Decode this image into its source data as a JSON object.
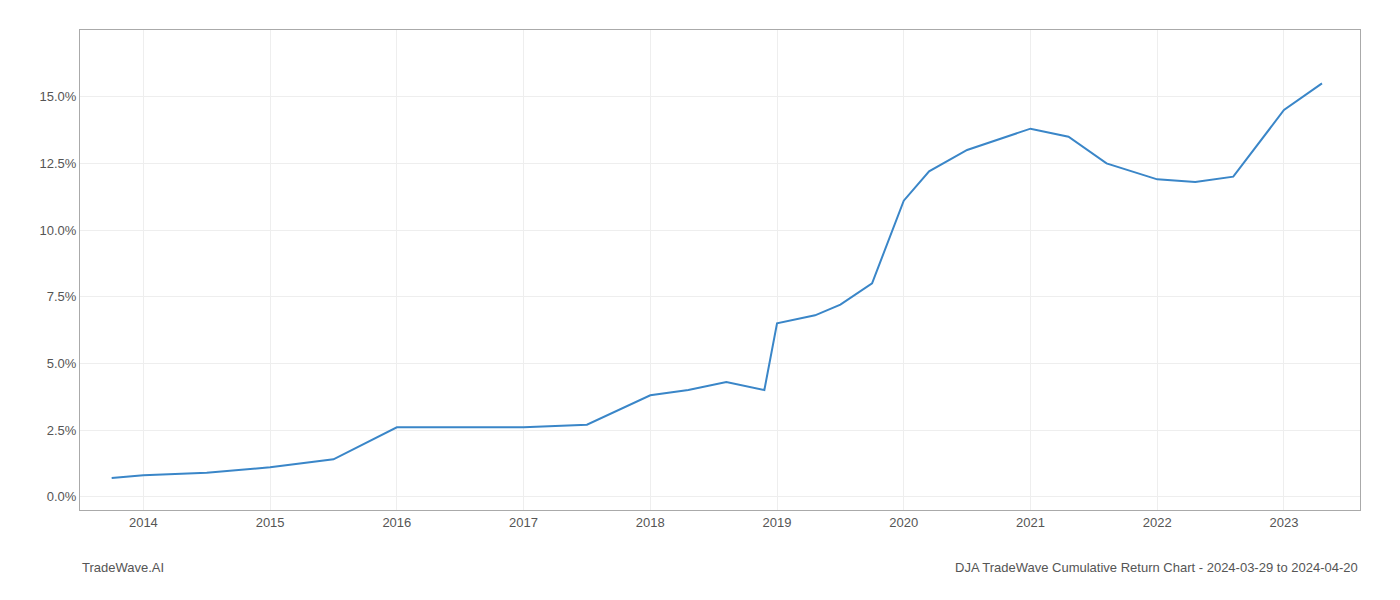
{
  "chart_data": {
    "type": "line",
    "x": [
      2013.75,
      2014.0,
      2014.5,
      2015.0,
      2015.5,
      2016.0,
      2016.5,
      2017.0,
      2017.5,
      2018.0,
      2018.3,
      2018.6,
      2018.9,
      2019.0,
      2019.3,
      2019.5,
      2019.75,
      2020.0,
      2020.2,
      2020.5,
      2021.0,
      2021.3,
      2021.6,
      2022.0,
      2022.3,
      2022.6,
      2023.0,
      2023.3
    ],
    "values": [
      0.007,
      0.008,
      0.009,
      0.011,
      0.014,
      0.026,
      0.026,
      0.026,
      0.027,
      0.038,
      0.04,
      0.043,
      0.04,
      0.065,
      0.068,
      0.072,
      0.08,
      0.111,
      0.122,
      0.13,
      0.138,
      0.135,
      0.125,
      0.119,
      0.118,
      0.12,
      0.145,
      0.155
    ],
    "color": "#3a86c8",
    "xlim": [
      2013.5,
      2023.6
    ],
    "xticks": [
      2014,
      2015,
      2016,
      2017,
      2018,
      2019,
      2020,
      2021,
      2022,
      2023
    ],
    "ylim": [
      -0.005,
      0.175
    ],
    "yticks": [
      {
        "value": 0.0,
        "label": "0.0%"
      },
      {
        "value": 0.025,
        "label": "2.5%"
      },
      {
        "value": 0.05,
        "label": "5.0%"
      },
      {
        "value": 0.075,
        "label": "7.5%"
      },
      {
        "value": 0.1,
        "label": "10.0%"
      },
      {
        "value": 0.125,
        "label": "12.5%"
      },
      {
        "value": 0.15,
        "label": "15.0%"
      }
    ],
    "grid": true,
    "annotations": [
      "TradeWave.AI",
      "DJA TradeWave Cumulative Return Chart - 2024-03-29 to 2024-04-20"
    ]
  }
}
